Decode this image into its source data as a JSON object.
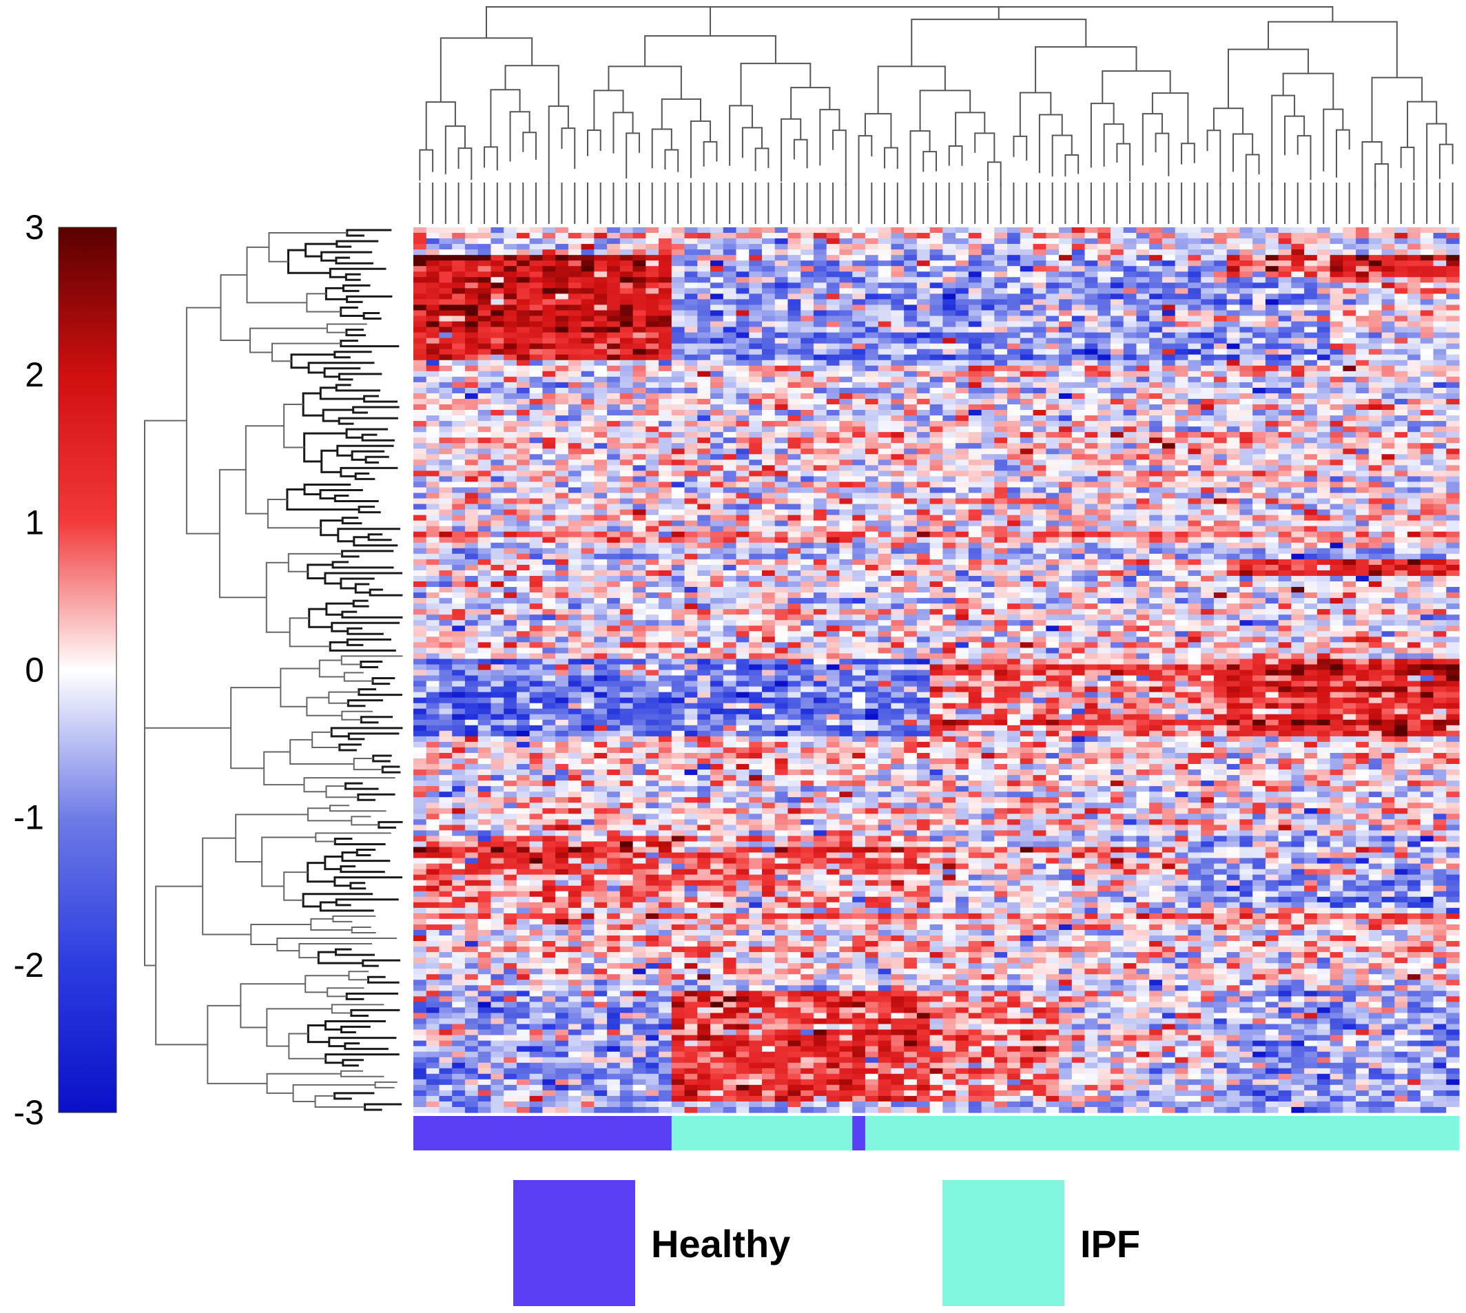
{
  "chart_data": {
    "type": "heatmap",
    "title": "",
    "xlabel": "",
    "ylabel": "",
    "colorbar": {
      "range": [
        -3,
        3
      ],
      "ticks": [
        "3",
        "2",
        "1",
        "0",
        "-1",
        "-2",
        "-3"
      ],
      "colors": {
        "low": "#0a10c8",
        "mid": "#ffffff",
        "high": "#5a0000"
      }
    },
    "groups": {
      "legend": [
        {
          "label": "Healthy",
          "color": "#5b3ff5"
        },
        {
          "label": "IPF",
          "color": "#80f7de"
        }
      ],
      "sample_groups": [
        "Healthy",
        "Healthy",
        "Healthy",
        "Healthy",
        "Healthy",
        "Healthy",
        "Healthy",
        "Healthy",
        "Healthy",
        "Healthy",
        "Healthy",
        "Healthy",
        "Healthy",
        "Healthy",
        "Healthy",
        "Healthy",
        "Healthy",
        "Healthy",
        "Healthy",
        "Healthy",
        "IPF",
        "IPF",
        "IPF",
        "IPF",
        "IPF",
        "IPF",
        "IPF",
        "IPF",
        "IPF",
        "IPF",
        "IPF",
        "IPF",
        "IPF",
        "IPF",
        "Healthy",
        "IPF",
        "IPF",
        "IPF",
        "IPF",
        "IPF",
        "IPF",
        "IPF",
        "IPF",
        "IPF",
        "IPF",
        "IPF",
        "IPF",
        "IPF",
        "IPF",
        "IPF",
        "IPF",
        "IPF",
        "IPF",
        "IPF",
        "IPF",
        "IPF",
        "IPF",
        "IPF",
        "IPF",
        "IPF",
        "IPF",
        "IPF",
        "IPF",
        "IPF",
        "IPF",
        "IPF",
        "IPF",
        "IPF",
        "IPF",
        "IPF",
        "IPF",
        "IPF",
        "IPF",
        "IPF",
        "IPF",
        "IPF",
        "IPF",
        "IPF",
        "IPF",
        "IPF",
        "IPF"
      ]
    },
    "n_genes": 160,
    "dendrograms": {
      "columns": true,
      "rows": true
    }
  }
}
